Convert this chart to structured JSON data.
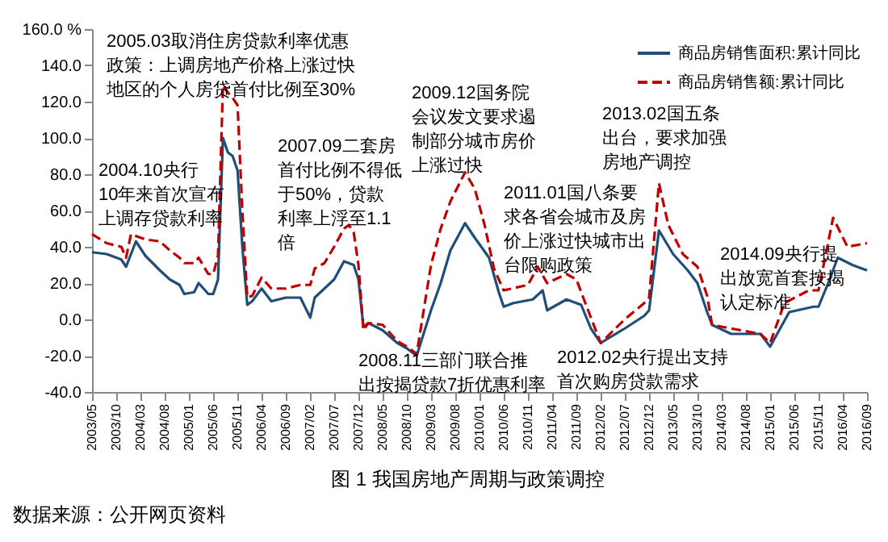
{
  "chart_data": {
    "type": "line",
    "xlim": [
      "2003-05",
      "2016-09"
    ],
    "xticks": [
      {
        "value": "2003-05",
        "label": "2003/05"
      },
      {
        "value": "2003-10",
        "label": "2003/10"
      },
      {
        "value": "2004-03",
        "label": "2004/03"
      },
      {
        "value": "2004-08",
        "label": "2004/08"
      },
      {
        "value": "2005-01",
        "label": "2005/01"
      },
      {
        "value": "2005-06",
        "label": "2005/06"
      },
      {
        "value": "2005-11",
        "label": "2005/11"
      },
      {
        "value": "2006-04",
        "label": "2006/04"
      },
      {
        "value": "2006-09",
        "label": "2006/09"
      },
      {
        "value": "2007-02",
        "label": "2007/02"
      },
      {
        "value": "2007-07",
        "label": "2007/07"
      },
      {
        "value": "2007-12",
        "label": "2007/12"
      },
      {
        "value": "2008-05",
        "label": "2008/05"
      },
      {
        "value": "2008-10",
        "label": "2008/10"
      },
      {
        "value": "2009-03",
        "label": "2009/03"
      },
      {
        "value": "2009-08",
        "label": "2009/08"
      },
      {
        "value": "2010-01",
        "label": "2010/01"
      },
      {
        "value": "2010-06",
        "label": "2010/06"
      },
      {
        "value": "2010-11",
        "label": "2010/11"
      },
      {
        "value": "2011-04",
        "label": "2011/04"
      },
      {
        "value": "2011-09",
        "label": "2011/09"
      },
      {
        "value": "2012-02",
        "label": "2012/02"
      },
      {
        "value": "2012-07",
        "label": "2012/07"
      },
      {
        "value": "2012-12",
        "label": "2012/12"
      },
      {
        "value": "2013-05",
        "label": "2013/05"
      },
      {
        "value": "2013-10",
        "label": "2013/10"
      },
      {
        "value": "2014-03",
        "label": "2014/03"
      },
      {
        "value": "2014-08",
        "label": "2014/08"
      },
      {
        "value": "2015-01",
        "label": "2015/01"
      },
      {
        "value": "2015-06",
        "label": "2015/06"
      },
      {
        "value": "2015-11",
        "label": "2015/11"
      },
      {
        "value": "2016-04",
        "label": "2016/04"
      },
      {
        "value": "2016-09",
        "label": "2016/09"
      }
    ],
    "ylim": [
      -40,
      160
    ],
    "yticks": [
      {
        "value": -40,
        "label": "-40.0"
      },
      {
        "value": -20,
        "label": "-20.0"
      },
      {
        "value": 0,
        "label": "0.0"
      },
      {
        "value": 20,
        "label": "20.0"
      },
      {
        "value": 40,
        "label": "40.0"
      },
      {
        "value": 60,
        "label": "60.0"
      },
      {
        "value": 80,
        "label": "80.0"
      },
      {
        "value": 100,
        "label": "100.0"
      },
      {
        "value": 120,
        "label": "120.0"
      },
      {
        "value": 140,
        "label": "140.0"
      },
      {
        "value": 160,
        "label": "160.0 %"
      }
    ],
    "legend": "top right",
    "series": [
      {
        "name": "商品房销售面积:累计同比",
        "color": "#1f4e79",
        "line_style": "solid",
        "x": [
          "2003-05",
          "2003-08",
          "2003-11",
          "2003-12",
          "2004-02",
          "2004-04",
          "2004-07",
          "2004-09",
          "2004-11",
          "2004-12",
          "2005-02",
          "2005-03",
          "2005-05",
          "2005-06",
          "2005-07",
          "2005-08",
          "2005-09",
          "2005-10",
          "2005-11",
          "2005-12",
          "2006-01",
          "2006-02",
          "2006-04",
          "2006-06",
          "2006-09",
          "2006-12",
          "2007-02",
          "2007-03",
          "2007-05",
          "2007-07",
          "2007-09",
          "2007-11",
          "2007-12",
          "2008-01",
          "2008-02",
          "2008-05",
          "2008-08",
          "2008-10",
          "2008-12",
          "2009-03",
          "2009-05",
          "2009-07",
          "2009-10",
          "2009-12",
          "2010-03",
          "2010-05",
          "2010-06",
          "2010-08",
          "2010-12",
          "2011-02",
          "2011-03",
          "2011-07",
          "2011-10",
          "2011-12",
          "2012-02",
          "2012-07",
          "2012-11",
          "2012-12",
          "2013-02",
          "2013-05",
          "2013-08",
          "2013-10",
          "2013-12",
          "2014-01",
          "2014-05",
          "2014-11",
          "2015-01",
          "2015-05",
          "2015-10",
          "2015-11",
          "2016-01",
          "2016-03",
          "2016-06",
          "2016-08",
          "2016-09"
        ],
        "values": [
          37,
          36,
          33,
          29,
          43,
          35,
          27,
          22,
          19,
          14,
          15,
          20,
          14,
          14,
          22,
          100,
          92,
          90,
          82,
          40,
          8,
          10,
          17,
          10,
          12,
          12,
          1,
          12,
          17,
          22,
          32,
          30,
          22,
          -4,
          -2,
          -6,
          -13,
          -16,
          -20,
          5,
          20,
          38,
          53,
          45,
          34,
          15,
          7,
          9,
          11,
          16,
          5,
          11,
          8,
          -5,
          -13,
          -5,
          2,
          5,
          49,
          36,
          27,
          20,
          4,
          -3,
          -8,
          -8,
          -15,
          4,
          7,
          7,
          20,
          34,
          30,
          28,
          27
        ]
      },
      {
        "name": "商品房销售额:累计同比",
        "color": "#c00000",
        "line_style": "dashed",
        "x": [
          "2003-05",
          "2003-08",
          "2003-11",
          "2003-12",
          "2004-01",
          "2004-04",
          "2004-07",
          "2004-09",
          "2004-11",
          "2004-12",
          "2005-02",
          "2005-03",
          "2005-05",
          "2005-06",
          "2005-07",
          "2005-08",
          "2005-09",
          "2005-10",
          "2005-11",
          "2005-12",
          "2006-01",
          "2006-02",
          "2006-04",
          "2006-06",
          "2006-09",
          "2006-12",
          "2007-02",
          "2007-03",
          "2007-05",
          "2007-07",
          "2007-09",
          "2007-10",
          "2007-11",
          "2007-12",
          "2008-01",
          "2008-02",
          "2008-05",
          "2008-08",
          "2008-10",
          "2008-12",
          "2009-03",
          "2009-05",
          "2009-07",
          "2009-10",
          "2009-12",
          "2010-02",
          "2010-04",
          "2010-06",
          "2010-11",
          "2011-01",
          "2011-03",
          "2011-07",
          "2011-09",
          "2011-12",
          "2012-02",
          "2012-07",
          "2012-11",
          "2012-12",
          "2013-02",
          "2013-04",
          "2013-07",
          "2013-10",
          "2013-12",
          "2014-01",
          "2014-05",
          "2014-11",
          "2015-01",
          "2015-04",
          "2015-09",
          "2015-11",
          "2016-02",
          "2016-05",
          "2016-09"
        ],
        "values": [
          47,
          42,
          40,
          34,
          47,
          44,
          43,
          38,
          34,
          31,
          31,
          34,
          25,
          25,
          35,
          129,
          125,
          122,
          118,
          60,
          12,
          13,
          23,
          17,
          17,
          19,
          19,
          28,
          31,
          40,
          50,
          52,
          48,
          30,
          -6,
          -2,
          -3,
          -12,
          -15,
          -19,
          30,
          50,
          65,
          81,
          72,
          52,
          28,
          16,
          19,
          29,
          20,
          25,
          22,
          1,
          -13,
          0,
          9,
          12,
          75,
          52,
          36,
          29,
          13,
          -3,
          -5,
          -8,
          -13,
          9,
          16,
          16,
          56,
          40,
          42
        ]
      }
    ],
    "annotations": [
      "2005.03取消住房贷款利率优惠政策：上调房地产价格上涨过快地区的个人房贷首付比例至30%",
      "2004.10央行10年来首次宣布上调存贷款利率",
      "2007.09二套房首付比例不得低于50%，贷款利率上浮至1.1倍",
      "2009.12国务院会议发文要求遏制部分城市房价上涨过快",
      "2011.01国八条要求各省会城市及房价上涨过快城市出台限购政策",
      "2013.02国五条出台，要求加强房地产调控",
      "2014.09央行提出放宽首套按揭认定标准",
      "2008.11三部门联合推出按揭贷款7折优惠利率",
      "2012.02央行提出支持首次购房贷款需求",
      "图 1   我国房地产周期与政策调控",
      "数据来源：公开网页资料"
    ]
  }
}
